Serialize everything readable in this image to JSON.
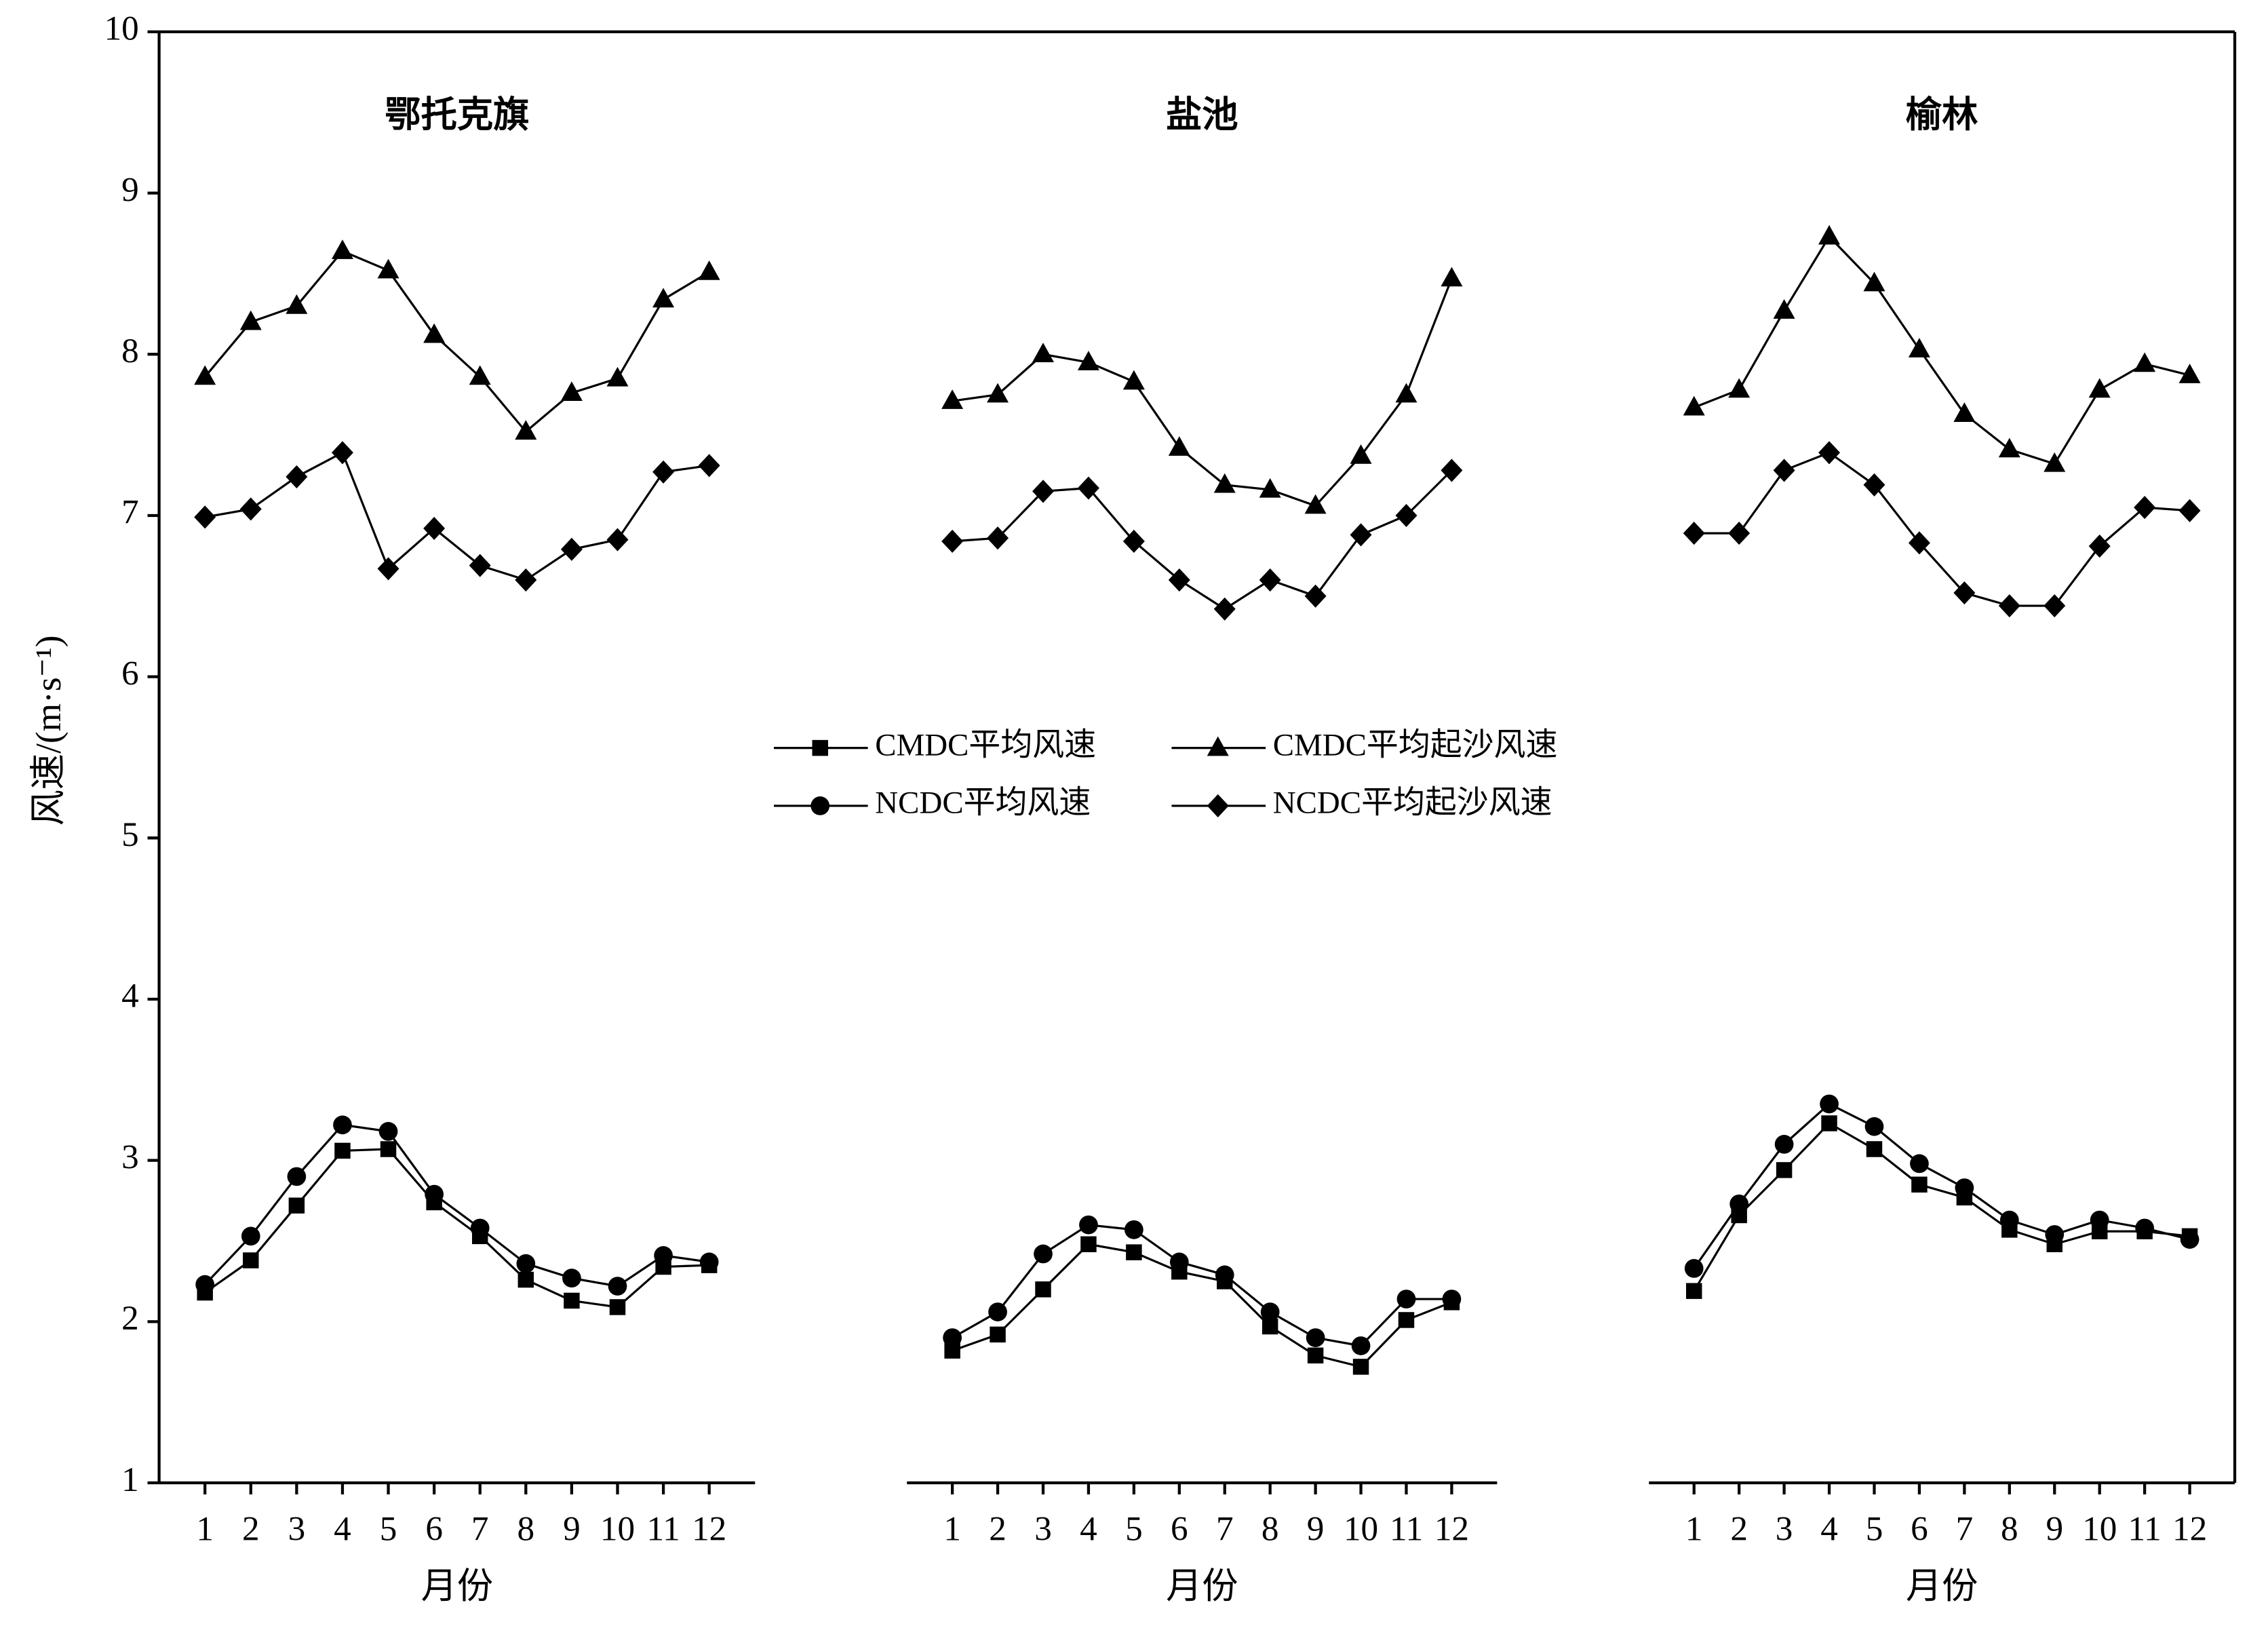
{
  "chart_data": [
    {
      "type": "line",
      "title": "鄂托克旗",
      "xlabel": "月份",
      "ylabel": "风速/(m·s⁻¹)",
      "ylim": [
        1,
        10
      ],
      "yticks": [
        1,
        2,
        3,
        4,
        5,
        6,
        7,
        8,
        9,
        10
      ],
      "legend_position": "center",
      "categories": [
        "1",
        "2",
        "3",
        "4",
        "5",
        "6",
        "7",
        "8",
        "9",
        "10",
        "11",
        "12"
      ],
      "series": [
        {
          "name": "CMDC平均风速",
          "marker": "square",
          "color": "#000000",
          "values": [
            2.18,
            2.38,
            2.72,
            3.06,
            3.07,
            2.74,
            2.53,
            2.26,
            2.13,
            2.09,
            2.34,
            2.35
          ]
        },
        {
          "name": "NCDC平均风速",
          "marker": "circle",
          "color": "#000000",
          "values": [
            2.23,
            2.53,
            2.9,
            3.22,
            3.18,
            2.79,
            2.58,
            2.36,
            2.27,
            2.22,
            2.41,
            2.37
          ]
        },
        {
          "name": "CMDC平均起沙风速",
          "marker": "triangle",
          "color": "#000000",
          "values": [
            7.86,
            8.2,
            8.3,
            8.64,
            8.52,
            8.12,
            7.86,
            7.52,
            7.76,
            7.85,
            8.34,
            8.51
          ]
        },
        {
          "name": "NCDC平均起沙风速",
          "marker": "diamond",
          "color": "#000000",
          "values": [
            6.99,
            7.04,
            7.24,
            7.39,
            6.67,
            6.92,
            6.69,
            6.6,
            6.79,
            6.85,
            7.27,
            7.31
          ]
        }
      ]
    },
    {
      "type": "line",
      "title": "盐池",
      "xlabel": "月份",
      "categories": [
        "1",
        "2",
        "3",
        "4",
        "5",
        "6",
        "7",
        "8",
        "9",
        "10",
        "11",
        "12"
      ],
      "series": [
        {
          "marker": "square",
          "color": "#000000",
          "values": [
            1.82,
            1.92,
            2.2,
            2.48,
            2.43,
            2.31,
            2.25,
            1.97,
            1.79,
            1.72,
            2.01,
            2.12
          ]
        },
        {
          "marker": "circle",
          "color": "#000000",
          "values": [
            1.9,
            2.06,
            2.42,
            2.6,
            2.57,
            2.37,
            2.29,
            2.06,
            1.9,
            1.85,
            2.14,
            2.14
          ]
        },
        {
          "marker": "triangle",
          "color": "#000000",
          "values": [
            7.71,
            7.75,
            8.0,
            7.95,
            7.83,
            7.42,
            7.19,
            7.16,
            7.06,
            7.37,
            7.75,
            8.47
          ]
        },
        {
          "marker": "diamond",
          "color": "#000000",
          "values": [
            6.84,
            6.86,
            7.15,
            7.17,
            6.84,
            6.6,
            6.42,
            6.6,
            6.5,
            6.88,
            7.0,
            7.28
          ]
        }
      ]
    },
    {
      "type": "line",
      "title": "榆林",
      "xlabel": "月份",
      "categories": [
        "1",
        "2",
        "3",
        "4",
        "5",
        "6",
        "7",
        "8",
        "9",
        "10",
        "11",
        "12"
      ],
      "series": [
        {
          "marker": "square",
          "color": "#000000",
          "values": [
            2.19,
            2.66,
            2.94,
            3.23,
            3.07,
            2.85,
            2.77,
            2.57,
            2.48,
            2.56,
            2.56,
            2.53
          ]
        },
        {
          "marker": "circle",
          "color": "#000000",
          "values": [
            2.33,
            2.73,
            3.1,
            3.35,
            3.21,
            2.98,
            2.83,
            2.63,
            2.54,
            2.63,
            2.58,
            2.51
          ]
        },
        {
          "marker": "triangle",
          "color": "#000000",
          "values": [
            7.67,
            7.78,
            8.27,
            8.73,
            8.44,
            8.03,
            7.63,
            7.41,
            7.32,
            7.78,
            7.94,
            7.87
          ]
        },
        {
          "marker": "diamond",
          "color": "#000000",
          "values": [
            6.89,
            6.89,
            7.28,
            7.39,
            7.19,
            6.83,
            6.52,
            6.44,
            6.44,
            6.81,
            7.05,
            7.03
          ]
        }
      ]
    }
  ]
}
